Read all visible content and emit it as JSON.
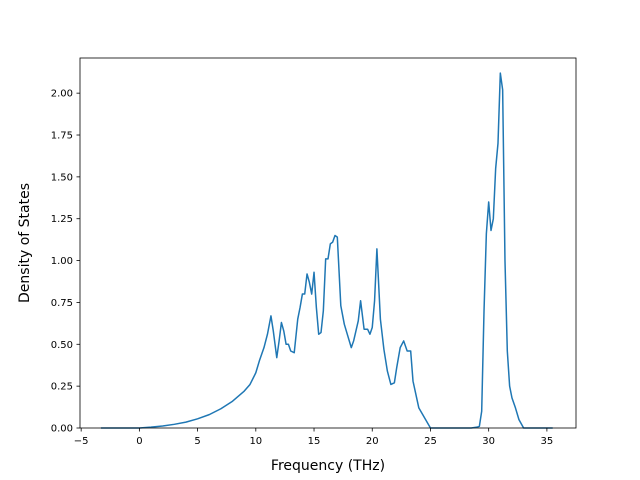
{
  "chart_data": {
    "type": "line",
    "title": "",
    "xlabel": "Frequency (THz)",
    "ylabel": "Density of States",
    "xlim": [
      -5.1,
      37.5
    ],
    "ylim": [
      0,
      2.21
    ],
    "grid": false,
    "line_color": "#1f77b4",
    "x_ticks": [
      -5,
      0,
      5,
      10,
      15,
      20,
      25,
      30,
      35
    ],
    "x_tick_labels": [
      "−5",
      "0",
      "5",
      "10",
      "15",
      "20",
      "25",
      "30",
      "35"
    ],
    "y_ticks": [
      0,
      0.25,
      0.5,
      0.75,
      1.0,
      1.25,
      1.5,
      1.75,
      2.0
    ],
    "y_tick_labels": [
      "0.00",
      "0.25",
      "0.50",
      "0.75",
      "1.00",
      "1.25",
      "1.50",
      "1.75",
      "2.00"
    ],
    "series": [
      {
        "x": [
          -3.3,
          -2.0,
          -1.0,
          0.0,
          1.0,
          2.0,
          3.0,
          4.0,
          5.0,
          6.0,
          7.0,
          8.0,
          9.0,
          9.5,
          10.0,
          10.3,
          10.7,
          11.0,
          11.3,
          11.5,
          11.8,
          12.0,
          12.2,
          12.4,
          12.6,
          12.8,
          13.0,
          13.3,
          13.6,
          13.8,
          14.0,
          14.2,
          14.4,
          14.6,
          14.8,
          15.0,
          15.2,
          15.4,
          15.6,
          15.8,
          16.0,
          16.2,
          16.4,
          16.6,
          16.8,
          17.0,
          17.3,
          17.6,
          17.9,
          18.2,
          18.4,
          18.6,
          18.8,
          19.0,
          19.3,
          19.6,
          19.8,
          20.0,
          20.2,
          20.4,
          20.7,
          21.0,
          21.3,
          21.6,
          21.9,
          22.1,
          22.4,
          22.7,
          23.0,
          23.3,
          23.5,
          24.0,
          25.0,
          26.0,
          27.0,
          28.0,
          28.5,
          29.0,
          29.2,
          29.4,
          29.6,
          29.8,
          30.0,
          30.2,
          30.4,
          30.6,
          30.8,
          31.0,
          31.2,
          31.4,
          31.6,
          31.8,
          32.0,
          32.3,
          32.6,
          33.0,
          34.0,
          35.0,
          35.5
        ],
        "y": [
          0,
          0,
          0,
          0,
          0.005,
          0.012,
          0.022,
          0.035,
          0.055,
          0.08,
          0.115,
          0.16,
          0.22,
          0.26,
          0.33,
          0.4,
          0.48,
          0.56,
          0.67,
          0.58,
          0.42,
          0.52,
          0.63,
          0.58,
          0.5,
          0.5,
          0.46,
          0.45,
          0.65,
          0.72,
          0.8,
          0.8,
          0.92,
          0.87,
          0.8,
          0.93,
          0.72,
          0.56,
          0.57,
          0.7,
          1.01,
          1.01,
          1.1,
          1.11,
          1.15,
          1.14,
          0.73,
          0.62,
          0.55,
          0.48,
          0.52,
          0.58,
          0.64,
          0.76,
          0.59,
          0.59,
          0.56,
          0.6,
          0.76,
          1.07,
          0.65,
          0.47,
          0.34,
          0.26,
          0.27,
          0.36,
          0.48,
          0.52,
          0.46,
          0.46,
          0.28,
          0.12,
          0,
          0,
          0,
          0,
          0,
          0.005,
          0.01,
          0.1,
          0.7,
          1.16,
          1.35,
          1.18,
          1.25,
          1.55,
          1.7,
          2.12,
          2.02,
          1.0,
          0.46,
          0.25,
          0.18,
          0.12,
          0.05,
          0,
          0,
          0,
          0
        ]
      }
    ]
  }
}
